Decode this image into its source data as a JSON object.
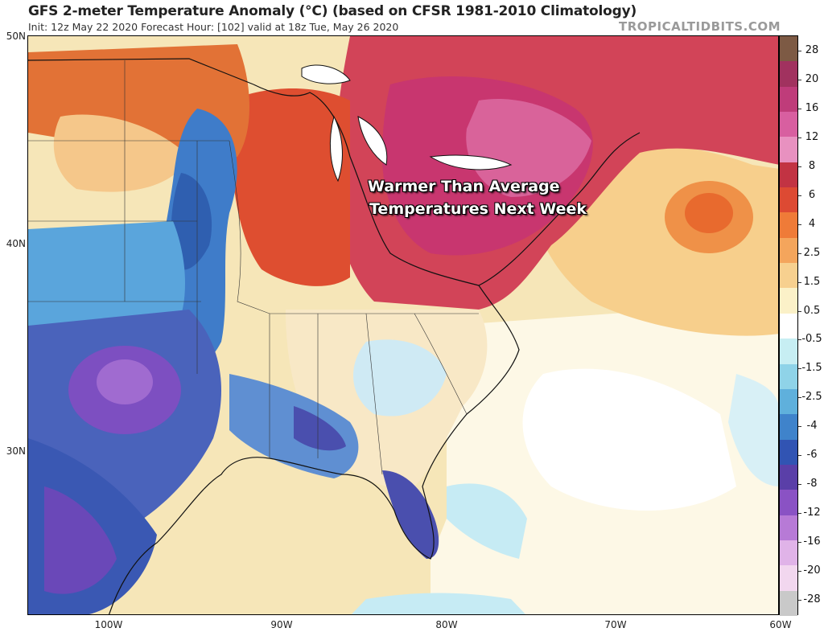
{
  "header": {
    "title": "GFS 2-meter Temperature Anomaly (°C) (based on CFSR 1981-2010 Climatology)",
    "subtitle": "Init: 12z May 22 2020   Forecast Hour: [102]   valid at 18z Tue, May 26 2020",
    "brand": "TROPICALTIDBITS.COM"
  },
  "map": {
    "latitude_labels": [
      "50N",
      "40N",
      "30N"
    ],
    "longitude_labels": [
      "100W",
      "90W",
      "80W",
      "70W",
      "60W"
    ],
    "annotation_line1": "Warmer Than Average",
    "annotation_line2": "Temperatures Next Week",
    "regions": [
      "north-central-warm",
      "northeast-very-warm",
      "great-lakes-warm",
      "atlantic-ocean-warm-blob",
      "plains-cold-band",
      "southern-plains-very-cold",
      "texas-mexico-cold",
      "gulf-coast-cold",
      "florida-cold",
      "southeast-mixed",
      "atlantic-near-normal",
      "gulf-of-mexico-slight-warm",
      "caribbean-cool"
    ]
  },
  "colorbar": {
    "labels": [
      "28",
      "20",
      "16",
      "12",
      "8",
      "6",
      "4",
      "2.5",
      "1.5",
      "0.5",
      "-0.5",
      "-1.5",
      "-2.5",
      "-4",
      "-6",
      "-8",
      "-12",
      "-16",
      "-20",
      "-28"
    ],
    "colors": [
      "#7d5a44",
      "#a1325f",
      "#bf3c7a",
      "#d85fa0",
      "#e891c0",
      "#c23343",
      "#dd4a33",
      "#ef7b38",
      "#f4a55c",
      "#f7d08f",
      "#fbf1c8",
      "#ffffff",
      "#c7eef3",
      "#8fd3e8",
      "#5fb0dc",
      "#3f83cb",
      "#3154b3",
      "#5a3fa8",
      "#8a52c4",
      "#b77ad6",
      "#e0b3e8",
      "#f2d7ef",
      "#c9c9c9"
    ]
  }
}
